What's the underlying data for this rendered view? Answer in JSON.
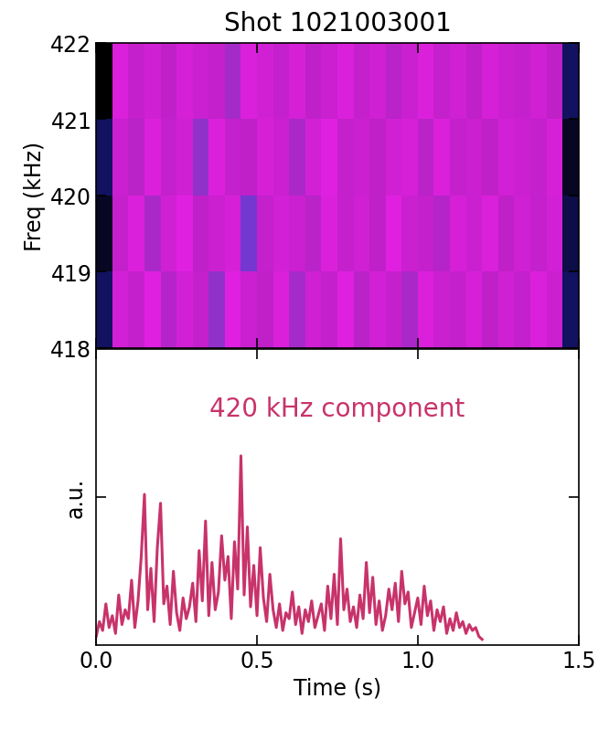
{
  "chart_data": [
    {
      "type": "heatmap",
      "title": "Shot 1021003001",
      "y_label": "Freq (kHz)",
      "xlim": [
        0,
        1.5
      ],
      "xticks": [
        0,
        0.5,
        1,
        1.5
      ],
      "ylim": [
        418,
        422
      ],
      "yticks": [
        418,
        419,
        420,
        421,
        422
      ],
      "tick_labels": "y",
      "x": [
        0,
        0.05,
        0.1,
        0.15,
        0.2,
        0.25,
        0.3,
        0.35,
        0.4,
        0.45,
        0.5,
        0.55,
        0.6,
        0.65,
        0.7,
        0.75,
        0.8,
        0.85,
        0.9,
        0.95,
        1.0,
        1.05,
        1.1,
        1.15,
        1.2,
        1.25,
        1.3,
        1.35,
        1.4,
        1.45,
        1.5
      ],
      "y": [
        418,
        419,
        420,
        421,
        422
      ],
      "cells": [
        [
          0.3,
          0.75,
          0.7,
          0.8,
          0.65,
          0.75,
          0.7,
          0.55,
          0.8,
          0.72,
          0.68,
          0.78,
          0.6,
          0.74,
          0.7,
          0.8,
          0.66,
          0.75,
          0.7,
          0.62,
          0.78,
          0.72,
          0.7,
          0.76,
          0.68,
          0.74,
          0.7,
          0.78,
          0.72,
          0.3
        ],
        [
          0.25,
          0.7,
          0.78,
          0.62,
          0.74,
          0.8,
          0.68,
          0.72,
          0.76,
          0.5,
          0.7,
          0.75,
          0.72,
          0.66,
          0.78,
          0.7,
          0.74,
          0.68,
          0.8,
          0.72,
          0.7,
          0.65,
          0.76,
          0.72,
          0.78,
          0.68,
          0.74,
          0.7,
          0.75,
          0.28
        ],
        [
          0.3,
          0.72,
          0.66,
          0.78,
          0.7,
          0.74,
          0.55,
          0.78,
          0.7,
          0.68,
          0.76,
          0.72,
          0.62,
          0.75,
          0.8,
          0.7,
          0.72,
          0.68,
          0.74,
          0.76,
          0.66,
          0.78,
          0.7,
          0.72,
          0.68,
          0.75,
          0.72,
          0.7,
          0.76,
          0.25
        ],
        [
          0.22,
          0.78,
          0.7,
          0.74,
          0.68,
          0.76,
          0.72,
          0.7,
          0.6,
          0.78,
          0.74,
          0.7,
          0.76,
          0.68,
          0.72,
          0.78,
          0.7,
          0.74,
          0.66,
          0.72,
          0.78,
          0.7,
          0.74,
          0.68,
          0.76,
          0.72,
          0.7,
          0.74,
          0.68,
          0.3
        ]
      ]
    },
    {
      "type": "line",
      "x_label": "Time (s)",
      "y_label": "a.u.",
      "annotation": "420 kHz component",
      "color": "#c8336a",
      "xlim": [
        0,
        1.5
      ],
      "xticks": [
        {
          "value": 0,
          "label": "0.0"
        },
        0.5,
        {
          "value": 1,
          "label": "1.0"
        },
        1.5
      ],
      "ylim": [
        0,
        1
      ],
      "yticks": [
        0.5
      ],
      "tick_labels": "x",
      "x": [
        0.0,
        0.01,
        0.02,
        0.03,
        0.04,
        0.05,
        0.06,
        0.07,
        0.08,
        0.09,
        0.1,
        0.11,
        0.12,
        0.13,
        0.14,
        0.15,
        0.16,
        0.17,
        0.18,
        0.19,
        0.2,
        0.21,
        0.22,
        0.23,
        0.24,
        0.25,
        0.26,
        0.27,
        0.28,
        0.29,
        0.3,
        0.31,
        0.32,
        0.33,
        0.34,
        0.35,
        0.36,
        0.37,
        0.38,
        0.39,
        0.4,
        0.41,
        0.42,
        0.43,
        0.44,
        0.45,
        0.46,
        0.47,
        0.48,
        0.49,
        0.5,
        0.51,
        0.52,
        0.53,
        0.54,
        0.55,
        0.56,
        0.57,
        0.58,
        0.59,
        0.6,
        0.61,
        0.62,
        0.63,
        0.64,
        0.65,
        0.66,
        0.67,
        0.68,
        0.69,
        0.7,
        0.71,
        0.72,
        0.73,
        0.74,
        0.75,
        0.76,
        0.77,
        0.78,
        0.79,
        0.8,
        0.81,
        0.82,
        0.83,
        0.84,
        0.85,
        0.86,
        0.87,
        0.88,
        0.89,
        0.9,
        0.91,
        0.92,
        0.93,
        0.94,
        0.95,
        0.96,
        0.97,
        0.98,
        0.99,
        1.0,
        1.01,
        1.02,
        1.03,
        1.04,
        1.05,
        1.06,
        1.07,
        1.08,
        1.09,
        1.1,
        1.11,
        1.12,
        1.13,
        1.14,
        1.15,
        1.16,
        1.17,
        1.18,
        1.19,
        1.2
      ],
      "values": [
        0.03,
        0.08,
        0.05,
        0.14,
        0.06,
        0.1,
        0.04,
        0.17,
        0.07,
        0.12,
        0.09,
        0.22,
        0.06,
        0.15,
        0.3,
        0.51,
        0.12,
        0.26,
        0.08,
        0.33,
        0.48,
        0.14,
        0.2,
        0.07,
        0.25,
        0.11,
        0.05,
        0.16,
        0.09,
        0.13,
        0.21,
        0.08,
        0.32,
        0.15,
        0.42,
        0.1,
        0.28,
        0.12,
        0.18,
        0.37,
        0.22,
        0.3,
        0.09,
        0.35,
        0.19,
        0.64,
        0.17,
        0.4,
        0.13,
        0.27,
        0.1,
        0.33,
        0.16,
        0.08,
        0.24,
        0.12,
        0.06,
        0.14,
        0.05,
        0.11,
        0.09,
        0.18,
        0.07,
        0.13,
        0.04,
        0.12,
        0.08,
        0.15,
        0.06,
        0.1,
        0.14,
        0.05,
        0.2,
        0.09,
        0.24,
        0.07,
        0.36,
        0.12,
        0.19,
        0.08,
        0.13,
        0.06,
        0.17,
        0.09,
        0.28,
        0.11,
        0.23,
        0.07,
        0.15,
        0.05,
        0.1,
        0.19,
        0.12,
        0.21,
        0.08,
        0.25,
        0.14,
        0.18,
        0.06,
        0.11,
        0.16,
        0.07,
        0.2,
        0.1,
        0.15,
        0.05,
        0.12,
        0.08,
        0.13,
        0.04,
        0.09,
        0.05,
        0.11,
        0.06,
        0.08,
        0.04,
        0.07,
        0.05,
        0.06,
        0.03,
        0.02
      ]
    }
  ]
}
